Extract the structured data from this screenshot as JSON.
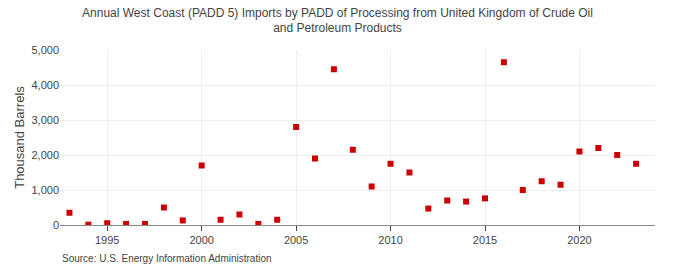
{
  "chart_data": {
    "type": "scatter",
    "title": "Annual West Coast (PADD 5) Imports by PADD of Processing from United Kingdom of Crude Oil\nand Petroleum Products",
    "ylabel": "Thousand Barrels",
    "annotations": [
      "Source: U.S. Energy Information Administration"
    ],
    "x": [
      1993,
      1994,
      1995,
      1996,
      1997,
      1998,
      1999,
      2000,
      2001,
      2002,
      2003,
      2004,
      2005,
      2006,
      2007,
      2008,
      2009,
      2010,
      2011,
      2012,
      2013,
      2014,
      2015,
      2016,
      2017,
      2018,
      2019,
      2020,
      2021,
      2022,
      2023
    ],
    "values": [
      350,
      10,
      50,
      30,
      30,
      500,
      130,
      1700,
      150,
      300,
      30,
      150,
      2800,
      1900,
      4450,
      2150,
      1100,
      1750,
      1500,
      470,
      700,
      670,
      760,
      4650,
      1000,
      1250,
      1150,
      2100,
      2200,
      2000,
      1750
    ],
    "color": "#cc0000",
    "marker": "square",
    "xlim": [
      1992.5,
      2024
    ],
    "xticks": [
      1995,
      2000,
      2005,
      2010,
      2015,
      2020
    ],
    "ylim": [
      0,
      5000
    ],
    "yticks": [
      0,
      {
        "value": 1000,
        "label": "1,000"
      },
      {
        "value": 2000,
        "label": "2,000"
      },
      {
        "value": 3000,
        "label": "3,000"
      },
      {
        "value": 4000,
        "label": "4,000"
      },
      {
        "value": 5000,
        "label": "5,000"
      }
    ],
    "grid": true
  }
}
